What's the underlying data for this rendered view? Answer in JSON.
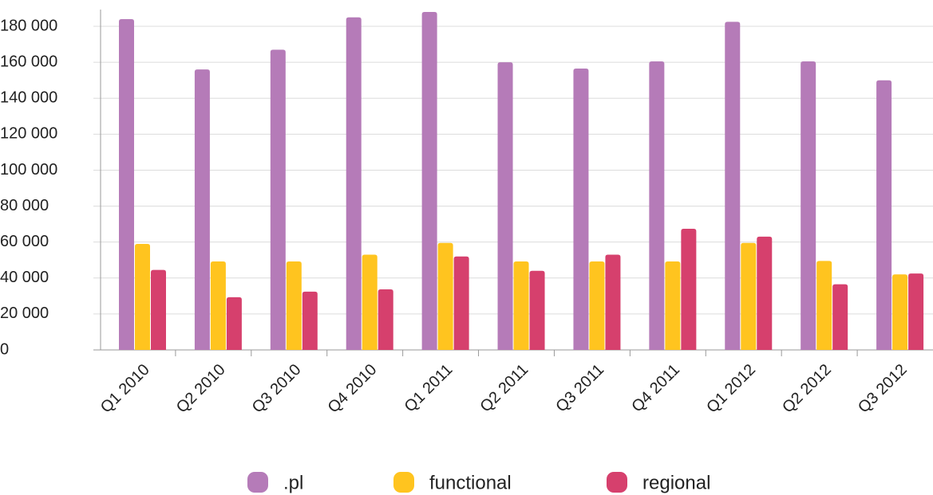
{
  "chart_data": {
    "type": "bar",
    "categories": [
      "Q1 2010",
      "Q2 2010",
      "Q3 2010",
      "Q4 2010",
      "Q1 2011",
      "Q2 2011",
      "Q3 2011",
      "Q4 2011",
      "Q1 2012",
      "Q2 2012",
      "Q3 2012"
    ],
    "series": [
      {
        "name": ".pl",
        "color": "#b57bb8",
        "values": [
          184000,
          156000,
          167000,
          185000,
          188000,
          160000,
          156500,
          160500,
          182500,
          160500,
          150000
        ]
      },
      {
        "name": "functional",
        "color": "#ffc41f",
        "values": [
          59000,
          49200,
          49200,
          53000,
          59500,
          49200,
          49200,
          49200,
          59500,
          49500,
          42000
        ]
      },
      {
        "name": "regional",
        "color": "#d6406d",
        "values": [
          44500,
          29300,
          32400,
          33700,
          52000,
          44000,
          53000,
          67400,
          63000,
          36500,
          42500
        ]
      }
    ],
    "ylim": [
      0,
      190000
    ],
    "yticks": [
      0,
      {
        "value": 20000,
        "label": "20 000"
      },
      {
        "value": 40000,
        "label": "40 000"
      },
      {
        "value": 60000,
        "label": "60 000"
      },
      {
        "value": 80000,
        "label": "80 000"
      },
      {
        "value": 100000,
        "label": "100 000"
      },
      {
        "value": 120000,
        "label": "120 000"
      },
      {
        "value": 140000,
        "label": "140 000"
      },
      {
        "value": 160000,
        "label": "160 000"
      },
      {
        "value": 180000,
        "label": "180 000"
      }
    ],
    "grid": true,
    "legend": "bottom"
  }
}
